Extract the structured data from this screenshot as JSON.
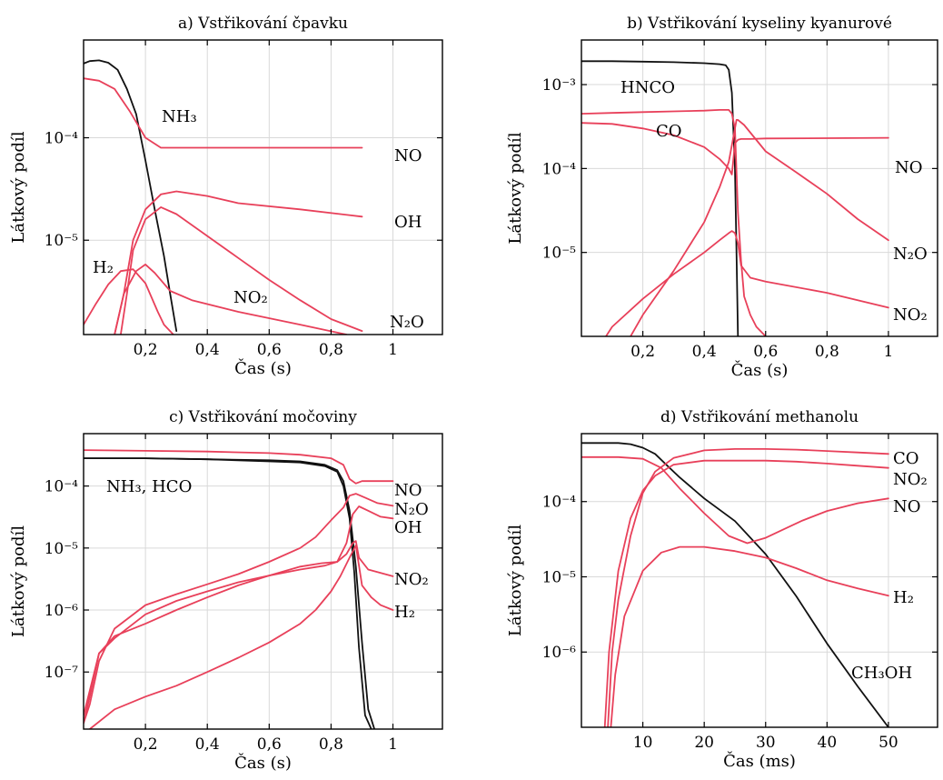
{
  "colors": {
    "red": "#e8405a",
    "black": "#111111",
    "grid": "#d9d9d9"
  },
  "chart_data": [
    {
      "type": "line",
      "title": "a) Vstřikování čpavku",
      "xlabel": "Čas (s)",
      "ylabel": "Látkový podíl",
      "yscale": "log",
      "xlim": [
        0,
        1.16
      ],
      "ylim": [
        1.2e-06,
        0.0009
      ],
      "xticks": [
        0.2,
        0.4,
        0.6,
        0.8,
        1.0
      ],
      "xtick_labels": [
        "0,2",
        "0,4",
        "0,6",
        "0,8",
        "1"
      ],
      "yticks": [
        1e-05,
        0.0001
      ],
      "ytick_labels": [
        "10⁻⁵",
        "10⁻⁴"
      ],
      "grid": true,
      "series": [
        {
          "name": "NH₃",
          "color": "#111111",
          "x": [
            0.0,
            0.02,
            0.05,
            0.08,
            0.11,
            0.14,
            0.17,
            0.2,
            0.23,
            0.26,
            0.28,
            0.3
          ],
          "y": [
            0.00053,
            0.00056,
            0.00057,
            0.00054,
            0.00046,
            0.0003,
            0.00017,
            6e-05,
            2e-05,
            7e-06,
            3e-06,
            1.3e-06
          ]
        },
        {
          "name": "NO",
          "color": "#e8405a",
          "x": [
            0.0,
            0.05,
            0.1,
            0.15,
            0.2,
            0.25,
            0.3,
            0.5,
            0.7,
            0.9
          ],
          "y": [
            0.00038,
            0.00036,
            0.0003,
            0.00018,
            0.0001,
            8e-05,
            8e-05,
            8e-05,
            8e-05,
            8e-05
          ]
        },
        {
          "name": "OH",
          "color": "#e8405a",
          "x": [
            0.1,
            0.13,
            0.16,
            0.2,
            0.25,
            0.3,
            0.4,
            0.5,
            0.7,
            0.9
          ],
          "y": [
            1.2e-06,
            3e-06,
            1e-05,
            2e-05,
            2.8e-05,
            3e-05,
            2.7e-05,
            2.3e-05,
            2e-05,
            1.7e-05
          ]
        },
        {
          "name": "N₂O",
          "color": "#e8405a",
          "x": [
            0.12,
            0.14,
            0.16,
            0.2,
            0.25,
            0.3,
            0.4,
            0.5,
            0.6,
            0.7,
            0.8,
            0.9
          ],
          "y": [
            1.2e-06,
            3e-06,
            8e-06,
            1.6e-05,
            2.1e-05,
            1.8e-05,
            1.1e-05,
            6.7e-06,
            4.1e-06,
            2.6e-06,
            1.7e-06,
            1.3e-06
          ]
        },
        {
          "name": "H₂",
          "color": "#e8405a",
          "x": [
            0.0,
            0.04,
            0.08,
            0.12,
            0.16,
            0.2,
            0.24,
            0.26,
            0.29
          ],
          "y": [
            1.5e-06,
            2.4e-06,
            3.7e-06,
            5e-06,
            5.2e-06,
            3.8e-06,
            2e-06,
            1.5e-06,
            1.2e-06
          ]
        },
        {
          "name": "NO₂",
          "color": "#e8405a",
          "x": [
            0.1,
            0.13,
            0.17,
            0.2,
            0.23,
            0.28,
            0.35,
            0.5,
            0.7,
            0.85
          ],
          "y": [
            1.2e-06,
            3e-06,
            5e-06,
            5.8e-06,
            4.8e-06,
            3.2e-06,
            2.6e-06,
            2e-06,
            1.5e-06,
            1.2e-06
          ]
        }
      ]
    },
    {
      "type": "line",
      "title": "b) Vstřikování kyseliny kyanurové",
      "xlabel": "Čas (s)",
      "ylabel": "Látkový podíl",
      "yscale": "log",
      "xlim": [
        0,
        1.16
      ],
      "ylim": [
        1e-06,
        0.0034
      ],
      "xticks": [
        0.2,
        0.4,
        0.6,
        0.8,
        1.0
      ],
      "xtick_labels": [
        "0,2",
        "0,4",
        "0,6",
        "0,8",
        "1"
      ],
      "yticks": [
        1e-05,
        0.0001,
        0.001
      ],
      "ytick_labels": [
        "10⁻⁵",
        "10⁻⁴",
        "10⁻³"
      ],
      "grid": true,
      "series": [
        {
          "name": "HNCO",
          "color": "#111111",
          "x": [
            0.0,
            0.1,
            0.2,
            0.3,
            0.4,
            0.45,
            0.47,
            0.48,
            0.49,
            0.5,
            0.505,
            0.51
          ],
          "y": [
            0.0019,
            0.0019,
            0.00188,
            0.00185,
            0.0018,
            0.00175,
            0.0017,
            0.0015,
            0.0008,
            0.0001,
            1e-05,
            1e-06
          ]
        },
        {
          "name": "CO",
          "color": "#e8405a",
          "x": [
            0.0,
            0.1,
            0.2,
            0.3,
            0.4,
            0.45,
            0.48,
            0.49,
            0.5,
            0.51,
            0.52,
            0.53,
            0.55,
            0.57,
            0.6
          ],
          "y": [
            0.00045,
            0.00046,
            0.00047,
            0.00048,
            0.00049,
            0.0005,
            0.0005,
            0.00045,
            0.0003,
            3e-05,
            8e-06,
            3e-06,
            1.8e-06,
            1.3e-06,
            1e-06
          ]
        },
        {
          "name": "NO",
          "color": "#e8405a",
          "x": [
            0.0,
            0.1,
            0.2,
            0.3,
            0.4,
            0.45,
            0.48,
            0.49,
            0.5,
            0.51,
            0.52,
            0.55,
            0.6,
            0.8,
            1.0
          ],
          "y": [
            0.00035,
            0.00034,
            0.0003,
            0.00025,
            0.00018,
            0.00013,
            0.0001,
            8.5e-05,
            0.0002,
            0.00022,
            0.000225,
            0.000225,
            0.000228,
            0.00023,
            0.000232
          ]
        },
        {
          "name": "N₂O",
          "color": "#e8405a",
          "x": [
            0.16,
            0.2,
            0.3,
            0.4,
            0.45,
            0.48,
            0.5,
            0.505,
            0.51,
            0.53,
            0.6,
            0.7,
            0.8,
            0.9,
            1.0
          ],
          "y": [
            1e-06,
            1.8e-06,
            6e-06,
            2.3e-05,
            6e-05,
            0.00012,
            0.0003,
            0.00038,
            0.00038,
            0.00033,
            0.00016,
            9e-05,
            5e-05,
            2.5e-05,
            1.4e-05
          ]
        },
        {
          "name": "NO₂",
          "color": "#e8405a",
          "x": [
            0.08,
            0.1,
            0.2,
            0.3,
            0.4,
            0.45,
            0.48,
            0.49,
            0.5,
            0.51,
            0.52,
            0.55,
            0.6,
            0.8,
            1.0
          ],
          "y": [
            1e-06,
            1.3e-06,
            2.8e-06,
            5.5e-06,
            1e-05,
            1.4e-05,
            1.7e-05,
            1.8e-05,
            1.7e-05,
            1.3e-05,
            7e-06,
            5e-06,
            4.5e-06,
            3.3e-06,
            2.2e-06
          ]
        }
      ]
    },
    {
      "type": "line",
      "title": "c) Vstřikování močoviny",
      "xlabel": "Čas (s)",
      "ylabel": "Látkový podíl",
      "yscale": "log",
      "xlim": [
        0,
        1.16
      ],
      "ylim": [
        1.2e-08,
        0.0007
      ],
      "xticks": [
        0.2,
        0.4,
        0.6,
        0.8,
        1.0
      ],
      "xtick_labels": [
        "0,2",
        "0,4",
        "0,6",
        "0,8",
        "1"
      ],
      "yticks": [
        1e-07,
        1e-06,
        1e-05,
        0.0001
      ],
      "ytick_labels": [
        "10⁻⁷",
        "10⁻⁶",
        "10⁻⁵",
        "10⁻⁴"
      ],
      "grid": true,
      "series": [
        {
          "name": "NH₃, HCO",
          "color": "#111111",
          "x": [
            0.0,
            0.2,
            0.4,
            0.6,
            0.7,
            0.78,
            0.82,
            0.84,
            0.86,
            0.88,
            0.9,
            0.92,
            0.94
          ],
          "y": [
            0.00028,
            0.00028,
            0.00027,
            0.00026,
            0.00025,
            0.00022,
            0.00018,
            0.00012,
            4e-05,
            5e-06,
            3e-07,
            2.5e-08,
            1.2e-08
          ]
        },
        {
          "name": "HCO",
          "color": "#111111",
          "x": [
            0.0,
            0.2,
            0.4,
            0.6,
            0.7,
            0.78,
            0.82,
            0.84,
            0.86,
            0.875,
            0.89,
            0.91,
            0.93
          ],
          "y": [
            0.00028,
            0.00028,
            0.00027,
            0.00025,
            0.00024,
            0.00021,
            0.00017,
            0.0001,
            3e-05,
            4e-06,
            2.5e-07,
            2e-08,
            1.2e-08
          ]
        },
        {
          "name": "NO",
          "color": "#e8405a",
          "x": [
            0.0,
            0.2,
            0.4,
            0.6,
            0.7,
            0.8,
            0.84,
            0.86,
            0.88,
            0.9,
            0.92,
            0.95,
            1.0
          ],
          "y": [
            0.00038,
            0.00037,
            0.00036,
            0.00034,
            0.00032,
            0.00028,
            0.00022,
            0.00013,
            0.00011,
            0.00012,
            0.00012,
            0.00012,
            0.00012
          ]
        },
        {
          "name": "N₂O",
          "color": "#e8405a",
          "x": [
            0.0,
            0.02,
            0.05,
            0.1,
            0.2,
            0.3,
            0.4,
            0.5,
            0.6,
            0.7,
            0.75,
            0.8,
            0.84,
            0.86,
            0.88,
            0.91,
            0.95,
            1.0
          ],
          "y": [
            1.5e-08,
            3e-08,
            1.5e-07,
            5e-07,
            1.2e-06,
            1.8e-06,
            2.6e-06,
            3.8e-06,
            6e-06,
            1e-05,
            1.5e-05,
            2.8e-05,
            4.5e-05,
            7e-05,
            7.5e-05,
            6.5e-05,
            5.3e-05,
            4.8e-05
          ]
        },
        {
          "name": "OH",
          "color": "#e8405a",
          "x": [
            0.0,
            0.02,
            0.05,
            0.1,
            0.2,
            0.3,
            0.4,
            0.5,
            0.6,
            0.7,
            0.78,
            0.82,
            0.85,
            0.87,
            0.89,
            0.92,
            0.96,
            1.0
          ],
          "y": [
            2e-08,
            5e-08,
            2e-07,
            3.5e-07,
            8.5e-07,
            1.4e-06,
            2e-06,
            2.8e-06,
            3.6e-06,
            4.5e-06,
            5.2e-06,
            6e-06,
            1.2e-05,
            3.5e-05,
            4.7e-05,
            4e-05,
            3.2e-05,
            3e-05
          ]
        },
        {
          "name": "NO₂",
          "color": "#e8405a",
          "x": [
            0.0,
            0.02,
            0.05,
            0.1,
            0.2,
            0.3,
            0.4,
            0.5,
            0.6,
            0.7,
            0.77,
            0.82,
            0.85,
            0.87,
            0.88,
            0.89,
            0.92,
            1.0
          ],
          "y": [
            1.5e-08,
            4e-08,
            2e-07,
            3.8e-07,
            6e-07,
            1e-06,
            1.6e-06,
            2.5e-06,
            3.6e-06,
            5e-06,
            5.7e-06,
            6e-06,
            8e-06,
            1.2e-05,
            1.3e-05,
            7e-06,
            4.5e-06,
            3.5e-06
          ]
        },
        {
          "name": "H₂",
          "color": "#e8405a",
          "x": [
            0.02,
            0.1,
            0.2,
            0.3,
            0.4,
            0.5,
            0.6,
            0.7,
            0.75,
            0.8,
            0.83,
            0.86,
            0.88,
            0.9,
            0.93,
            0.96,
            1.0
          ],
          "y": [
            1.2e-08,
            2.5e-08,
            4e-08,
            6e-08,
            1e-07,
            1.7e-07,
            3e-07,
            6e-07,
            1e-06,
            2e-06,
            3.5e-06,
            7e-06,
            1.1e-05,
            2.5e-06,
            1.6e-06,
            1.2e-06,
            1e-06
          ]
        }
      ]
    },
    {
      "type": "line",
      "title": "d) Vstřikování methanolu",
      "xlabel": "Čas (ms)",
      "ylabel": "Látkový podíl",
      "yscale": "log",
      "xlim": [
        0,
        58
      ],
      "ylim": [
        1e-07,
        0.0008
      ],
      "xticks": [
        10,
        20,
        30,
        40,
        50
      ],
      "xtick_labels": [
        "10",
        "20",
        "30",
        "40",
        "50"
      ],
      "yticks": [
        1e-06,
        1e-05,
        0.0001
      ],
      "ytick_labels": [
        "10⁻⁶",
        "10⁻⁵",
        "10⁻⁴"
      ],
      "grid": true,
      "series": [
        {
          "name": "CH₃OH",
          "color": "#111111",
          "x": [
            0,
            3,
            6,
            8,
            10,
            12,
            14,
            16,
            20,
            25,
            30,
            35,
            40,
            45,
            50
          ],
          "y": [
            0.0006,
            0.0006,
            0.0006,
            0.00058,
            0.00052,
            0.00043,
            0.0003,
            0.00021,
            0.00011,
            5.5e-05,
            2e-05,
            5.5e-06,
            1.3e-06,
            3.5e-07,
            1e-07
          ]
        },
        {
          "name": "CO",
          "color": "#e8405a",
          "x": [
            4.3,
            5,
            6,
            8,
            10,
            12,
            15,
            20,
            25,
            30,
            35,
            40,
            45,
            50
          ],
          "y": [
            1e-07,
            1e-06,
            5e-06,
            3.5e-05,
            0.00013,
            0.00025,
            0.00038,
            0.00048,
            0.0005,
            0.0005,
            0.00049,
            0.00047,
            0.00045,
            0.00043
          ]
        },
        {
          "name": "NO₂",
          "color": "#e8405a",
          "x": [
            3.8,
            4.5,
            6,
            8,
            10,
            12,
            15,
            20,
            25,
            30,
            35,
            40,
            45,
            50
          ],
          "y": [
            1e-07,
            1e-06,
            1.2e-05,
            6e-05,
            0.00014,
            0.00022,
            0.00031,
            0.00035,
            0.00035,
            0.00035,
            0.00034,
            0.00032,
            0.0003,
            0.00028
          ]
        },
        {
          "name": "NO",
          "color": "#e8405a",
          "x": [
            0,
            6,
            10,
            13,
            16,
            20,
            24,
            27,
            30,
            33,
            36,
            40,
            45,
            50
          ],
          "y": [
            0.00039,
            0.00039,
            0.00037,
            0.00028,
            0.00015,
            7e-05,
            3.5e-05,
            2.8e-05,
            3.3e-05,
            4.3e-05,
            5.6e-05,
            7.5e-05,
            9.5e-05,
            0.00011
          ]
        },
        {
          "name": "H₂",
          "color": "#e8405a",
          "x": [
            4.8,
            5.5,
            7,
            10,
            13,
            16,
            20,
            25,
            30,
            35,
            40,
            45,
            50
          ],
          "y": [
            1e-07,
            5e-07,
            3e-06,
            1.2e-05,
            2.1e-05,
            2.5e-05,
            2.5e-05,
            2.2e-05,
            1.8e-05,
            1.3e-05,
            9e-06,
            7e-06,
            5.6e-06
          ]
        }
      ]
    }
  ],
  "labels": {
    "a": {
      "nh3": "NH₃",
      "no": "NO",
      "oh": "OH",
      "h2": "H₂",
      "no2": "NO₂",
      "n2o": "N₂O"
    },
    "b": {
      "hnco": "HNCO",
      "co": "CO",
      "no": "NO",
      "n2o": "N₂O",
      "no2": "NO₂"
    },
    "c": {
      "nh3hco": "NH₃, HCO",
      "no": "NO",
      "n2o": "N₂O",
      "oh": "OH",
      "no2": "NO₂",
      "h2": "H₂"
    },
    "d": {
      "co": "CO",
      "no2": "NO₂",
      "no": "NO",
      "h2": "H₂",
      "ch3oh": "CH₃OH"
    }
  }
}
